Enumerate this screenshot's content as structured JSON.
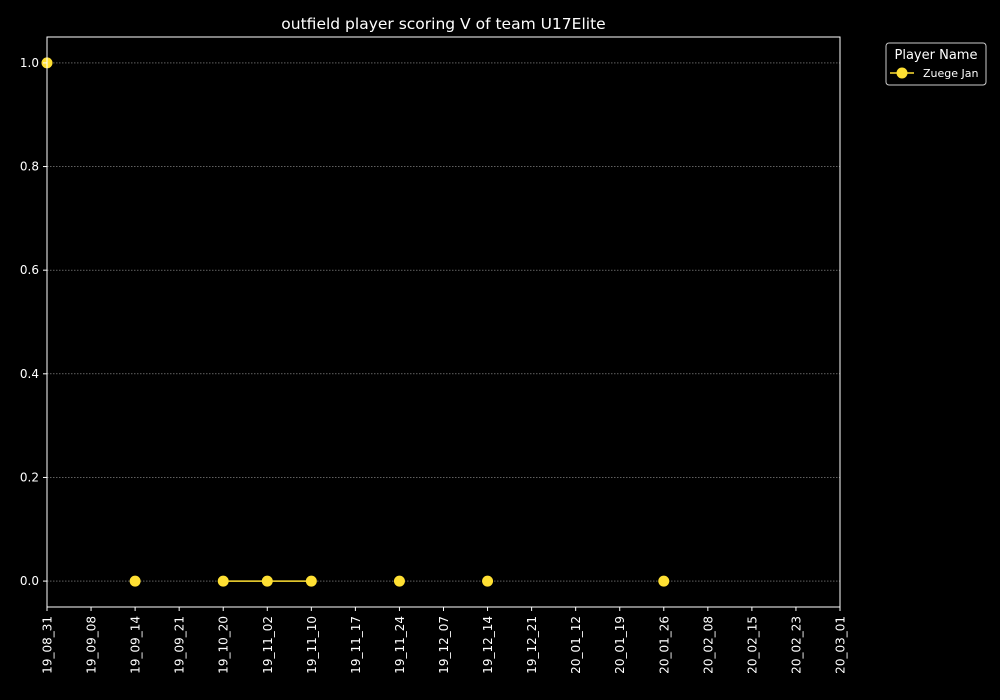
{
  "chart_data": {
    "type": "line",
    "title": "outfield player scoring V of team U17Elite",
    "xlabel": "",
    "ylabel": "",
    "x_ticks": [
      "19_08_31",
      "19_09_08",
      "19_09_14",
      "19_09_21",
      "19_10_20",
      "19_11_02",
      "19_11_10",
      "19_11_17",
      "19_11_24",
      "19_12_07",
      "19_12_14",
      "19_12_21",
      "20_01_12",
      "20_01_19",
      "20_01_26",
      "20_02_08",
      "20_02_15",
      "20_02_23",
      "20_03_01"
    ],
    "y_ticks": [
      "0.0",
      "0.2",
      "0.4",
      "0.6",
      "0.8",
      "1.0"
    ],
    "ylim": [
      -0.05,
      1.05
    ],
    "grid": true,
    "legend": {
      "title": "Player Name",
      "placement": "outside-top-right"
    },
    "series": [
      {
        "name": "Zuege Jan",
        "color": "#FFE033",
        "points": [
          {
            "x": "19_08_31",
            "y": 1.0,
            "connect_prev": false
          },
          {
            "x": "19_09_14",
            "y": 0.0,
            "connect_prev": false
          },
          {
            "x": "19_10_20",
            "y": 0.0,
            "connect_prev": false
          },
          {
            "x": "19_11_02",
            "y": 0.0,
            "connect_prev": true
          },
          {
            "x": "19_11_10",
            "y": 0.0,
            "connect_prev": true
          },
          {
            "x": "19_11_24",
            "y": 0.0,
            "connect_prev": false
          },
          {
            "x": "19_12_14",
            "y": 0.0,
            "connect_prev": false
          },
          {
            "x": "20_01_26",
            "y": 0.0,
            "connect_prev": false
          }
        ]
      }
    ]
  }
}
